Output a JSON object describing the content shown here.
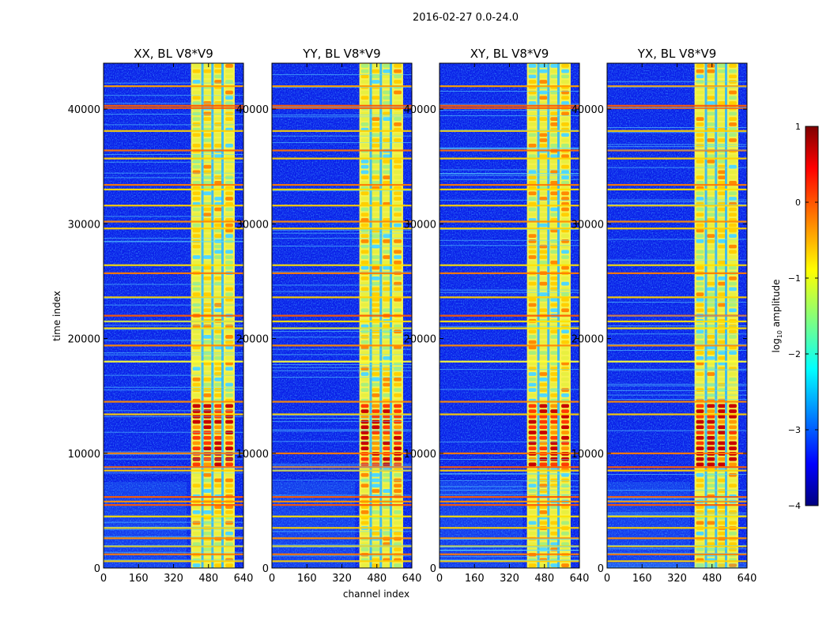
{
  "figure": {
    "suptitle": "2016-02-27 0.0-24.0",
    "xlabel": "channel index",
    "ylabel": "time index"
  },
  "colors": {
    "background": "#ffffff",
    "colormap": [
      "#00007f",
      "#0000ff",
      "#007fff",
      "#00ffff",
      "#7fff7f",
      "#ffff00",
      "#ff7f00",
      "#ff0000",
      "#7f0000"
    ]
  },
  "chart_data": [
    {
      "type": "heatmap",
      "title": "XX, BL V8*V9",
      "xlabel": "channel index",
      "ylabel": "time index",
      "xlim": [
        0,
        640
      ],
      "ylim": [
        0,
        44000
      ],
      "xticks": [
        0,
        160,
        320,
        480,
        640
      ],
      "yticks": [
        0,
        10000,
        20000,
        30000,
        40000
      ],
      "ytick_labels": [
        "0",
        "10000",
        "20000",
        "30000",
        "40000"
      ],
      "signal_channels": [
        400,
        600
      ],
      "strong_time_range": [
        9000,
        14500
      ],
      "colorscale": "jet"
    },
    {
      "type": "heatmap",
      "title": "YY, BL V8*V9",
      "xlabel": "",
      "ylabel": "",
      "xlim": [
        0,
        640
      ],
      "ylim": [
        0,
        44000
      ],
      "xticks": [
        0,
        160,
        320,
        480,
        640
      ],
      "yticks": [
        0,
        10000,
        20000,
        30000,
        40000
      ],
      "ytick_labels": [
        "0",
        "10000",
        "20000",
        "30000",
        "40000"
      ],
      "signal_channels": [
        400,
        600
      ],
      "strong_time_range": [
        9000,
        14500
      ],
      "colorscale": "jet"
    },
    {
      "type": "heatmap",
      "title": "XY, BL V8*V9",
      "xlabel": "",
      "ylabel": "",
      "xlim": [
        0,
        640
      ],
      "ylim": [
        0,
        44000
      ],
      "xticks": [
        0,
        160,
        320,
        480,
        640
      ],
      "yticks": [
        0,
        10000,
        20000,
        30000,
        40000
      ],
      "ytick_labels": [
        "0",
        "10000",
        "20000",
        "30000",
        "40000"
      ],
      "signal_channels": [
        400,
        600
      ],
      "strong_time_range": [
        9000,
        14500
      ],
      "colorscale": "jet"
    },
    {
      "type": "heatmap",
      "title": "YX, BL V8*V9",
      "xlabel": "",
      "ylabel": "",
      "xlim": [
        0,
        640
      ],
      "ylim": [
        0,
        44000
      ],
      "xticks": [
        0,
        160,
        320,
        480,
        640
      ],
      "yticks": [
        0,
        10000,
        20000,
        30000,
        40000
      ],
      "ytick_labels": [
        "0",
        "10000",
        "20000",
        "30000",
        "40000"
      ],
      "signal_channels": [
        400,
        600
      ],
      "strong_time_range": [
        9000,
        14500
      ],
      "colorscale": "jet"
    }
  ],
  "colorbar": {
    "label_prefix": "log",
    "label_sub": "10",
    "label_suffix": " amplitude",
    "range": [
      -4,
      1
    ],
    "ticks": [
      1,
      0,
      -1,
      -2,
      -3,
      -4
    ],
    "tick_labels": [
      "1",
      "0",
      "−1",
      "−2",
      "−3",
      "−4"
    ]
  }
}
